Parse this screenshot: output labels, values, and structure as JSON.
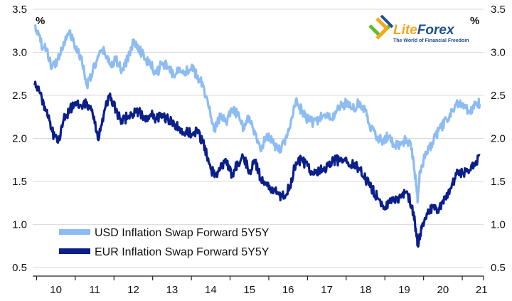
{
  "chart_data": {
    "type": "line",
    "title": "",
    "xlabel": "",
    "ylabel": "%",
    "ylabel_right": "%",
    "ylim": [
      0.5,
      3.5
    ],
    "yticks": [
      "0.5",
      "1.0",
      "1.5",
      "2.0",
      "2.5",
      "3.0",
      "3.5"
    ],
    "x_categories": [
      "10",
      "11",
      "12",
      "13",
      "14",
      "15",
      "16",
      "17",
      "18",
      "19",
      "20",
      "21"
    ],
    "xlim": [
      9.9,
      21.55
    ],
    "grid": "horizontal",
    "legend_position": "bottom-left",
    "series": [
      {
        "name": "USD Inflation Swap Forward 5Y5Y",
        "color": "#8dbcf2",
        "points": [
          [
            9.95,
            3.32
          ],
          [
            10.1,
            3.12
          ],
          [
            10.25,
            3.02
          ],
          [
            10.4,
            2.82
          ],
          [
            10.55,
            2.92
          ],
          [
            10.7,
            3.12
          ],
          [
            10.85,
            3.25
          ],
          [
            11.0,
            3.05
          ],
          [
            11.15,
            2.95
          ],
          [
            11.3,
            2.62
          ],
          [
            11.45,
            2.78
          ],
          [
            11.6,
            2.95
          ],
          [
            11.75,
            3.02
          ],
          [
            11.9,
            2.85
          ],
          [
            12.05,
            2.92
          ],
          [
            12.2,
            2.78
          ],
          [
            12.35,
            2.92
          ],
          [
            12.5,
            3.12
          ],
          [
            12.65,
            3.05
          ],
          [
            12.8,
            2.92
          ],
          [
            12.95,
            2.85
          ],
          [
            13.1,
            2.75
          ],
          [
            13.25,
            2.88
          ],
          [
            13.4,
            2.82
          ],
          [
            13.55,
            2.72
          ],
          [
            13.7,
            2.82
          ],
          [
            13.85,
            2.78
          ],
          [
            14.0,
            2.82
          ],
          [
            14.15,
            2.72
          ],
          [
            14.3,
            2.62
          ],
          [
            14.45,
            2.35
          ],
          [
            14.6,
            2.12
          ],
          [
            14.75,
            2.25
          ],
          [
            14.9,
            2.18
          ],
          [
            15.05,
            2.32
          ],
          [
            15.2,
            2.28
          ],
          [
            15.35,
            2.12
          ],
          [
            15.5,
            2.25
          ],
          [
            15.65,
            2.05
          ],
          [
            15.8,
            1.85
          ],
          [
            15.95,
            2.05
          ],
          [
            16.1,
            1.95
          ],
          [
            16.25,
            1.85
          ],
          [
            16.4,
            1.95
          ],
          [
            16.55,
            2.12
          ],
          [
            16.7,
            2.45
          ],
          [
            16.85,
            2.32
          ],
          [
            17.0,
            2.22
          ],
          [
            17.15,
            2.18
          ],
          [
            17.3,
            2.22
          ],
          [
            17.45,
            2.28
          ],
          [
            17.6,
            2.22
          ],
          [
            17.75,
            2.32
          ],
          [
            17.9,
            2.38
          ],
          [
            18.05,
            2.42
          ],
          [
            18.2,
            2.35
          ],
          [
            18.35,
            2.42
          ],
          [
            18.5,
            2.32
          ],
          [
            18.65,
            2.12
          ],
          [
            18.8,
            2.02
          ],
          [
            18.95,
            1.98
          ],
          [
            19.1,
            2.02
          ],
          [
            19.25,
            1.92
          ],
          [
            19.4,
            1.92
          ],
          [
            19.55,
            2.0
          ],
          [
            19.7,
            1.88
          ],
          [
            19.8,
            1.5
          ],
          [
            19.85,
            1.28
          ],
          [
            19.9,
            1.62
          ],
          [
            20.0,
            1.75
          ],
          [
            20.15,
            1.88
          ],
          [
            20.3,
            2.02
          ],
          [
            20.45,
            2.12
          ],
          [
            20.6,
            2.22
          ],
          [
            20.75,
            2.32
          ],
          [
            20.9,
            2.42
          ],
          [
            21.05,
            2.38
          ],
          [
            21.2,
            2.32
          ],
          [
            21.35,
            2.42
          ],
          [
            21.45,
            2.4
          ]
        ]
      },
      {
        "name": "EUR Inflation Swap Forward 5Y5Y",
        "color": "#0b1f8a",
        "points": [
          [
            9.95,
            2.62
          ],
          [
            10.1,
            2.52
          ],
          [
            10.25,
            2.32
          ],
          [
            10.4,
            2.08
          ],
          [
            10.55,
            1.95
          ],
          [
            10.7,
            2.22
          ],
          [
            10.85,
            2.32
          ],
          [
            11.0,
            2.42
          ],
          [
            11.15,
            2.38
          ],
          [
            11.3,
            2.42
          ],
          [
            11.45,
            2.28
          ],
          [
            11.6,
            1.98
          ],
          [
            11.75,
            2.32
          ],
          [
            11.9,
            2.52
          ],
          [
            12.05,
            2.32
          ],
          [
            12.2,
            2.2
          ],
          [
            12.35,
            2.25
          ],
          [
            12.5,
            2.28
          ],
          [
            12.65,
            2.32
          ],
          [
            12.8,
            2.22
          ],
          [
            12.95,
            2.28
          ],
          [
            13.1,
            2.22
          ],
          [
            13.25,
            2.28
          ],
          [
            13.4,
            2.22
          ],
          [
            13.55,
            2.18
          ],
          [
            13.7,
            2.12
          ],
          [
            13.85,
            2.08
          ],
          [
            14.0,
            2.05
          ],
          [
            14.15,
            2.08
          ],
          [
            14.3,
            1.95
          ],
          [
            14.45,
            1.72
          ],
          [
            14.6,
            1.55
          ],
          [
            14.75,
            1.65
          ],
          [
            14.9,
            1.72
          ],
          [
            15.05,
            1.58
          ],
          [
            15.2,
            1.72
          ],
          [
            15.35,
            1.78
          ],
          [
            15.5,
            1.62
          ],
          [
            15.65,
            1.72
          ],
          [
            15.8,
            1.52
          ],
          [
            15.95,
            1.45
          ],
          [
            16.1,
            1.42
          ],
          [
            16.25,
            1.35
          ],
          [
            16.4,
            1.32
          ],
          [
            16.55,
            1.45
          ],
          [
            16.7,
            1.72
          ],
          [
            16.85,
            1.75
          ],
          [
            17.0,
            1.68
          ],
          [
            17.15,
            1.58
          ],
          [
            17.3,
            1.62
          ],
          [
            17.45,
            1.65
          ],
          [
            17.6,
            1.72
          ],
          [
            17.75,
            1.75
          ],
          [
            17.9,
            1.72
          ],
          [
            18.05,
            1.72
          ],
          [
            18.2,
            1.68
          ],
          [
            18.35,
            1.65
          ],
          [
            18.5,
            1.52
          ],
          [
            18.65,
            1.42
          ],
          [
            18.8,
            1.32
          ],
          [
            18.95,
            1.22
          ],
          [
            19.1,
            1.25
          ],
          [
            19.25,
            1.28
          ],
          [
            19.4,
            1.32
          ],
          [
            19.55,
            1.38
          ],
          [
            19.7,
            1.22
          ],
          [
            19.8,
            0.95
          ],
          [
            19.85,
            0.75
          ],
          [
            19.95,
            0.95
          ],
          [
            20.1,
            1.12
          ],
          [
            20.25,
            1.2
          ],
          [
            20.4,
            1.18
          ],
          [
            20.55,
            1.3
          ],
          [
            20.7,
            1.42
          ],
          [
            20.85,
            1.58
          ],
          [
            21.0,
            1.6
          ],
          [
            21.15,
            1.62
          ],
          [
            21.3,
            1.68
          ],
          [
            21.45,
            1.8
          ]
        ]
      }
    ]
  },
  "logo": {
    "brand": "LiteForex",
    "brand_part1": "Lite",
    "brand_part2": "Forex",
    "tagline": "The World of Financial Freedom",
    "color_main": "#1d4f91",
    "color_accent": "#f4a81c",
    "color_green": "#5bbf2a"
  }
}
